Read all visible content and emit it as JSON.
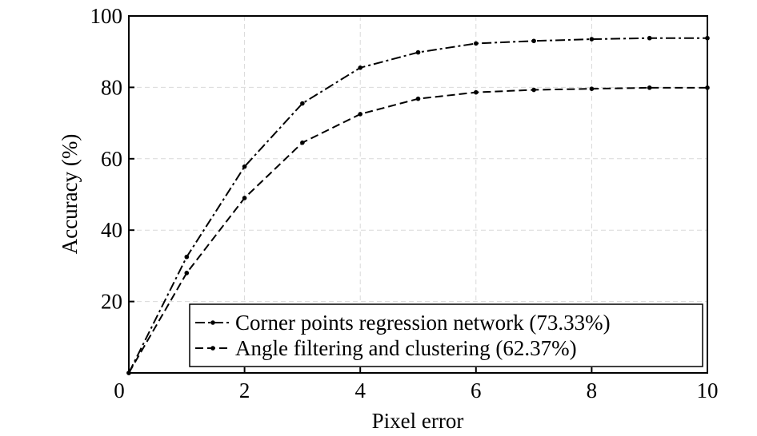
{
  "chart_data": {
    "type": "line",
    "xlabel": "Pixel error",
    "ylabel": "Accuracy (%)",
    "xlim": [
      0,
      10
    ],
    "ylim": [
      0,
      100
    ],
    "xticks": [
      0,
      2,
      4,
      6,
      8,
      10
    ],
    "yticks": [
      20,
      40,
      60,
      80,
      100
    ],
    "xtick_labels": [
      "0",
      "2",
      "4",
      "6",
      "8",
      "10"
    ],
    "ytick_labels": [
      "20",
      "40",
      "60",
      "80",
      "100"
    ],
    "grid": true,
    "legend_position": "bottom-right",
    "x": [
      0,
      1,
      2,
      3,
      4,
      5,
      6,
      7,
      8,
      9,
      10
    ],
    "series": [
      {
        "name": "Corner points regression network (73.33%)",
        "line_style": "dash-dot",
        "values": [
          0,
          32.5,
          57.8,
          75.5,
          85.5,
          89.8,
          92.3,
          93.0,
          93.5,
          93.8,
          93.8
        ]
      },
      {
        "name": "Angle filtering and clustering (62.37%)",
        "line_style": "dashed",
        "values": [
          0,
          28.0,
          49.0,
          64.5,
          72.5,
          76.8,
          78.6,
          79.3,
          79.6,
          79.9,
          79.9
        ]
      }
    ]
  }
}
